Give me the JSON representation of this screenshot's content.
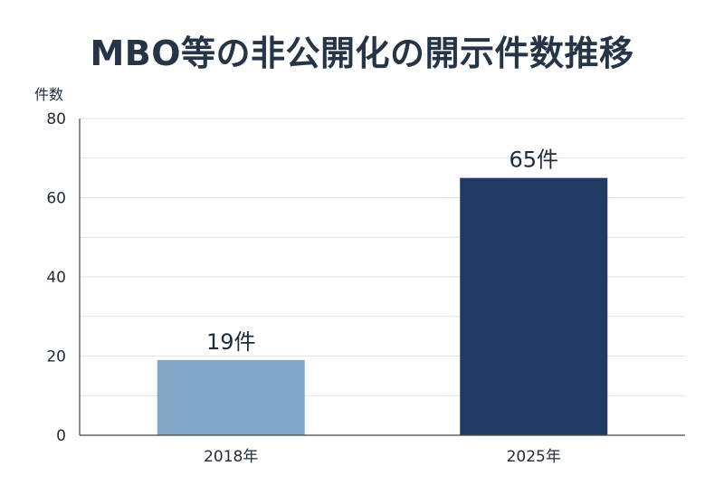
{
  "chart_data": {
    "type": "bar",
    "title": "MBO等の非公開化の開示件数推移",
    "ylabel": "件数",
    "xlabel": "",
    "categories": [
      "2018年",
      "2025年"
    ],
    "values": [
      19,
      65
    ],
    "data_labels": [
      "19件",
      "65件"
    ],
    "ylim": [
      0,
      80
    ],
    "yticks": [
      0,
      20,
      40,
      60,
      80
    ],
    "grid": true,
    "bar_colors": [
      "#82a5c8",
      "#1f3a63"
    ]
  }
}
